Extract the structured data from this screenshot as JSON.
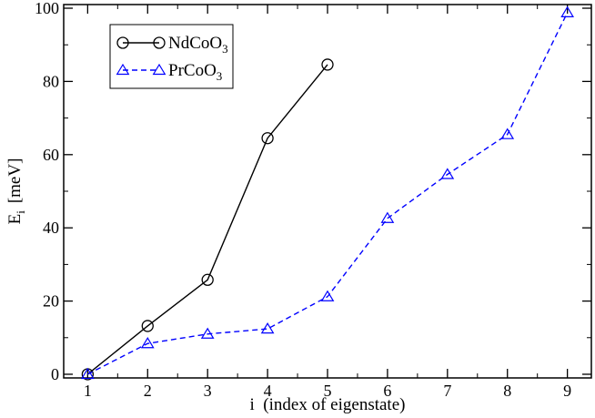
{
  "chart_data": {
    "type": "line",
    "x": [
      1,
      2,
      3,
      4,
      5,
      6,
      7,
      8,
      9
    ],
    "series": [
      {
        "name": "NdCoO3",
        "name_base": "NdCoO",
        "name_sub": "3",
        "x": [
          1,
          2,
          3,
          4,
          5
        ],
        "values": [
          0,
          13.2,
          25.8,
          64.5,
          84.6
        ],
        "color": "#000000",
        "line_style": "solid",
        "marker": "circle"
      },
      {
        "name": "PrCoO3",
        "name_base": "PrCoO",
        "name_sub": "3",
        "x": [
          1,
          2,
          3,
          4,
          5,
          6,
          7,
          8,
          9
        ],
        "values": [
          0,
          8.4,
          11.0,
          12.4,
          21.2,
          42.6,
          54.6,
          65.5,
          98.8
        ],
        "color": "#0000ff",
        "line_style": "dashed",
        "marker": "triangle"
      }
    ],
    "xlabel": "i  (index of eigenstate)",
    "ylabel_main": "E",
    "ylabel_sub": "i",
    "ylabel_unit": "[meV]",
    "xlim": [
      0.6,
      9.4
    ],
    "ylim": [
      -1,
      101
    ],
    "xticks": [
      1,
      2,
      3,
      4,
      5,
      6,
      7,
      8,
      9
    ],
    "yticks": [
      0,
      20,
      40,
      60,
      80,
      100
    ],
    "grid": false,
    "legend_position": "top-left"
  }
}
